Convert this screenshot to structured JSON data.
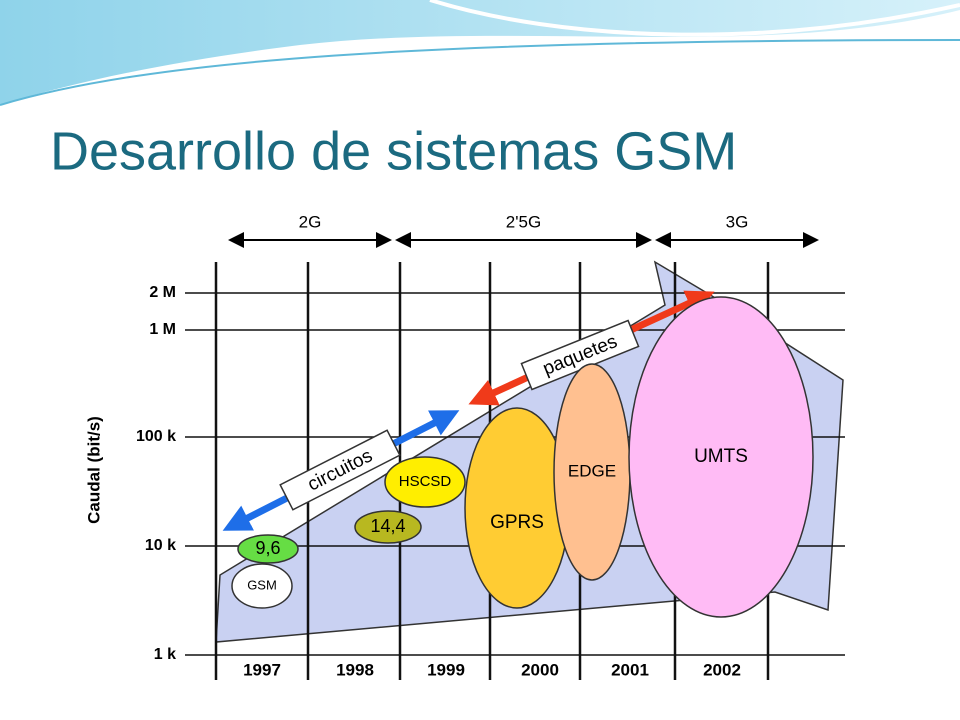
{
  "title": "Desarrollo de sistemas GSM",
  "diagram": {
    "axis_label": "Caudal (bit/s)",
    "rates": [
      "2 M",
      "1 M",
      "100 k",
      "10 k",
      "1 k"
    ],
    "years": [
      "1997",
      "1998",
      "1999",
      "2000",
      "2001",
      "2002"
    ],
    "eras": [
      "2G",
      "2'5G",
      "3G"
    ],
    "systems": [
      "GSM",
      "9,6",
      "14,4",
      "HSCSD",
      "GPRS",
      "EDGE",
      "UMTS"
    ],
    "arrows": [
      "circuitos",
      "paquetes"
    ]
  }
}
